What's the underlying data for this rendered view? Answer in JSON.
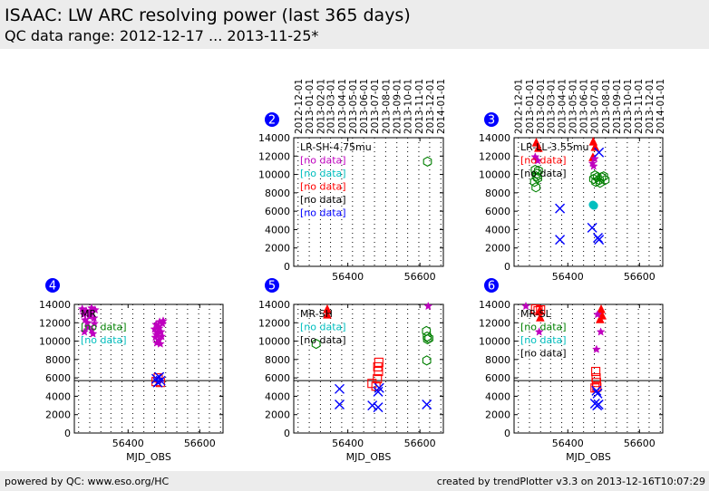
{
  "header": {
    "title": "ISAAC: LW ARC resolving power (last 365 days)",
    "subtitle": "QC data range: 2012-12-17 ... 2013-11-25*"
  },
  "footer": {
    "left": "powered by QC: www.eso.org/HC",
    "right": "created by trendPlotter v3.3 on 2013-12-16T10:07:29"
  },
  "colors": {
    "red": "#ff0000",
    "green": "#008000",
    "cyan": "#00bfbf",
    "magenta": "#bf00bf",
    "blue": "#0000ff",
    "badge": "#0000ff"
  },
  "date_ticks": [
    "2012-12-01",
    "2013-01-01",
    "2013-02-01",
    "2013-03-01",
    "2013-04-01",
    "2013-05-01",
    "2013-06-01",
    "2013-07-01",
    "2013-08-01",
    "2013-09-01",
    "2013-10-01",
    "2013-11-01",
    "2013-12-01",
    "2014-01-01"
  ],
  "date_tick_mjd": [
    56262,
    56293,
    56324,
    56352,
    56383,
    56413,
    56444,
    56474,
    56505,
    56536,
    56566,
    56597,
    56627,
    56658
  ],
  "chart_data": [
    {
      "type": "scatter",
      "panel": "2",
      "title": "LR-SH-4.75mu",
      "xlabel": "",
      "xlim": [
        56250,
        56665
      ],
      "ylim": [
        0,
        14000
      ],
      "x_ticks": [
        56400,
        56600
      ],
      "y_ticks": [
        0,
        2000,
        4000,
        6000,
        8000,
        10000,
        12000,
        14000
      ],
      "reference_line": null,
      "legend": [
        {
          "text": "[no data]",
          "color": "magenta"
        },
        {
          "text": "[no data]",
          "color": "cyan"
        },
        {
          "text": "[no data]",
          "color": "red"
        },
        {
          "text": "[no data]",
          "color": "black"
        },
        {
          "text": "[no data]",
          "color": "blue"
        }
      ],
      "series": [
        {
          "color": "green",
          "marker": "hexagon-open",
          "points": [
            [
              56621,
              11400
            ]
          ]
        }
      ]
    },
    {
      "type": "scatter",
      "panel": "3",
      "title": "LR-LL-3.55mu",
      "xlabel": "",
      "xlim": [
        56250,
        56665
      ],
      "ylim": [
        0,
        14000
      ],
      "x_ticks": [
        56400,
        56600
      ],
      "y_ticks": [
        0,
        2000,
        4000,
        6000,
        8000,
        10000,
        12000,
        14000
      ],
      "reference_line": null,
      "legend": [
        {
          "text": "[no data]",
          "color": "red"
        },
        {
          "text": "[no data]",
          "color": "black"
        }
      ],
      "series": [
        {
          "color": "red",
          "marker": "triangle",
          "points": [
            [
              56312,
              13400
            ],
            [
              56318,
              12800
            ],
            [
              56471,
              13500
            ],
            [
              56476,
              12900
            ],
            [
              56470,
              11800
            ]
          ]
        },
        {
          "color": "magenta",
          "marker": "star",
          "points": [
            [
              56309,
              11900
            ],
            [
              56316,
              11500
            ],
            [
              56469,
              11200
            ],
            [
              56472,
              10900
            ],
            [
              56475,
              11700
            ]
          ]
        },
        {
          "color": "green",
          "marker": "hexagon-open",
          "points": [
            [
              56309,
              10500
            ],
            [
              56312,
              9800
            ],
            [
              56314,
              10100
            ],
            [
              56307,
              9200
            ],
            [
              56311,
              8600
            ],
            [
              56316,
              9600
            ],
            [
              56318,
              10400
            ],
            [
              56472,
              9500
            ],
            [
              56478,
              9200
            ],
            [
              56482,
              9700
            ],
            [
              56488,
              9400
            ],
            [
              56494,
              9700
            ],
            [
              56500,
              9800
            ],
            [
              56504,
              9400
            ],
            [
              56476,
              9900
            ],
            [
              56490,
              9100
            ]
          ]
        },
        {
          "color": "cyan",
          "marker": "dot",
          "points": [
            [
              56470,
              6700
            ],
            [
              56473,
              6600
            ]
          ]
        },
        {
          "color": "blue",
          "marker": "x",
          "points": [
            [
              56378,
              6300
            ],
            [
              56378,
              2900
            ],
            [
              56487,
              12400
            ],
            [
              56468,
              4200
            ],
            [
              56487,
              2900
            ],
            [
              56484,
              3100
            ]
          ]
        }
      ]
    },
    {
      "type": "scatter",
      "panel": "4",
      "title": "MR",
      "xlabel": "MJD_OBS",
      "xlim": [
        56250,
        56665
      ],
      "ylim": [
        0,
        14000
      ],
      "x_ticks": [
        56400,
        56600
      ],
      "y_ticks": [
        0,
        2000,
        4000,
        6000,
        8000,
        10000,
        12000,
        14000
      ],
      "reference_line": 5700,
      "legend": [
        {
          "text": "[no data]",
          "color": "green"
        },
        {
          "text": "[no data]",
          "color": "cyan"
        }
      ],
      "series": [
        {
          "color": "magenta",
          "marker": "star",
          "points": [
            [
              56272,
              13500
            ],
            [
              56276,
              12900
            ],
            [
              56280,
              12300
            ],
            [
              56283,
              13300
            ],
            [
              56286,
              12000
            ],
            [
              56289,
              11500
            ],
            [
              56292,
              12700
            ],
            [
              56296,
              13100
            ],
            [
              56299,
              11200
            ],
            [
              56302,
              10800
            ],
            [
              56305,
              12500
            ],
            [
              56308,
              13400
            ],
            [
              56278,
              11000
            ],
            [
              56298,
              13600
            ],
            [
              56306,
              11900
            ],
            [
              56474,
              11300
            ],
            [
              56476,
              10400
            ],
            [
              56478,
              11800
            ],
            [
              56480,
              9800
            ],
            [
              56482,
              10900
            ],
            [
              56484,
              11600
            ],
            [
              56486,
              10100
            ],
            [
              56488,
              12100
            ],
            [
              56490,
              9700
            ],
            [
              56492,
              11000
            ],
            [
              56494,
              10500
            ],
            [
              56496,
              11900
            ],
            [
              56498,
              12200
            ],
            [
              56479,
              10700
            ],
            [
              56487,
              11400
            ]
          ]
        },
        {
          "color": "red",
          "marker": "square-open",
          "points": [
            [
              56478,
              5600
            ],
            [
              56484,
              6000
            ],
            [
              56490,
              5500
            ]
          ]
        },
        {
          "color": "blue",
          "marker": "x",
          "points": [
            [
              56479,
              5900
            ],
            [
              56483,
              5500
            ],
            [
              56487,
              6100
            ],
            [
              56491,
              5700
            ]
          ]
        }
      ]
    },
    {
      "type": "scatter",
      "panel": "5",
      "title": "MR-SH",
      "xlabel": "MJD_OBS",
      "xlim": [
        56250,
        56665
      ],
      "ylim": [
        0,
        14000
      ],
      "x_ticks": [
        56400,
        56600
      ],
      "y_ticks": [
        0,
        2000,
        4000,
        6000,
        8000,
        10000,
        12000,
        14000
      ],
      "reference_line": 5700,
      "legend": [
        {
          "text": "[no data]",
          "color": "cyan"
        },
        {
          "text": "[no data]",
          "color": "black"
        }
      ],
      "series": [
        {
          "color": "red",
          "marker": "triangle",
          "points": [
            [
              56343,
              13400
            ],
            [
              56343,
              12800
            ]
          ]
        },
        {
          "color": "magenta",
          "marker": "star",
          "points": [
            [
              56623,
              13800
            ]
          ]
        },
        {
          "color": "green",
          "marker": "hexagon-open",
          "points": [
            [
              56312,
              9700
            ],
            [
              56618,
              11100
            ],
            [
              56620,
              10500
            ],
            [
              56625,
              10300
            ],
            [
              56621,
              10200
            ],
            [
              56619,
              7900
            ]
          ]
        },
        {
          "color": "red",
          "marker": "square-open",
          "points": [
            [
              56467,
              5400
            ],
            [
              56478,
              5100
            ],
            [
              56482,
              5900
            ],
            [
              56485,
              6700
            ],
            [
              56483,
              7200
            ],
            [
              56486,
              7700
            ]
          ]
        },
        {
          "color": "blue",
          "marker": "x",
          "points": [
            [
              56377,
              4800
            ],
            [
              56377,
              3100
            ],
            [
              56468,
              3000
            ],
            [
              56484,
              2800
            ],
            [
              56484,
              4500
            ],
            [
              56487,
              4900
            ],
            [
              56619,
              3100
            ]
          ]
        }
      ]
    },
    {
      "type": "scatter",
      "panel": "6",
      "title": "MR-SL",
      "xlabel": "MJD_OBS",
      "xlim": [
        56250,
        56665
      ],
      "ylim": [
        0,
        14000
      ],
      "x_ticks": [
        56400,
        56600
      ],
      "y_ticks": [
        0,
        2000,
        4000,
        6000,
        8000,
        10000,
        12000,
        14000
      ],
      "reference_line": 5700,
      "legend": [
        {
          "text": "[no data]",
          "color": "green"
        },
        {
          "text": "[no data]",
          "color": "cyan"
        },
        {
          "text": "[no data]",
          "color": "black"
        }
      ],
      "series": [
        {
          "color": "red",
          "marker": "triangle",
          "points": [
            [
              56322,
              13300
            ],
            [
              56323,
              12500
            ],
            [
              56493,
              13400
            ],
            [
              56496,
              12700
            ],
            [
              56490,
              12300
            ]
          ]
        },
        {
          "color": "magenta",
          "marker": "star",
          "points": [
            [
              56283,
              13800
            ],
            [
              56320,
              11000
            ],
            [
              56492,
              11000
            ],
            [
              56480,
              9100
            ],
            [
              56483,
              12900
            ]
          ]
        },
        {
          "color": "red",
          "marker": "square-open",
          "points": [
            [
              56310,
              13500
            ],
            [
              56317,
              13300
            ],
            [
              56324,
              13400
            ],
            [
              56478,
              6700
            ],
            [
              56479,
              6000
            ],
            [
              56480,
              5500
            ],
            [
              56481,
              5000
            ],
            [
              56476,
              4900
            ]
          ]
        },
        {
          "color": "blue",
          "marker": "x",
          "points": [
            [
              56476,
              3200
            ],
            [
              56480,
              4600
            ],
            [
              56482,
              3000
            ],
            [
              56483,
              4300
            ],
            [
              56486,
              3100
            ]
          ]
        }
      ]
    }
  ],
  "panel_badges": [
    "2",
    "3",
    "4",
    "5",
    "6"
  ]
}
